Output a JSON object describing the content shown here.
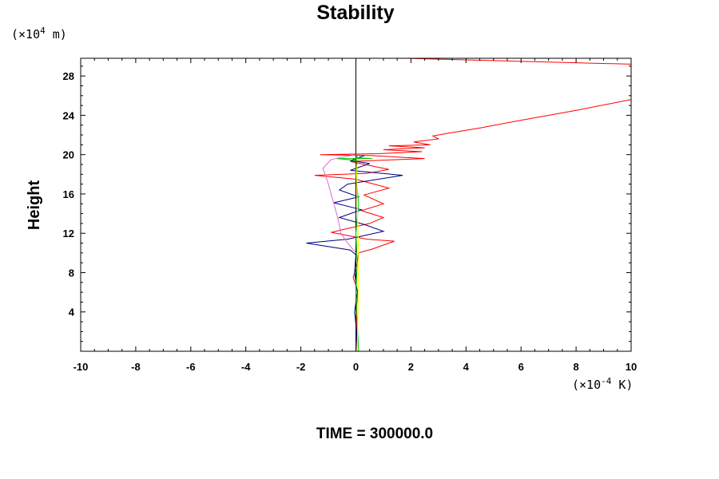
{
  "chart_data": {
    "type": "line",
    "title": "Stability",
    "ylabel": "Height",
    "xlabel": "",
    "x_unit": {
      "prefix": "(×10",
      "exp": "-4",
      "suffix": " K)"
    },
    "y_unit": {
      "prefix": "(×10",
      "exp": "4",
      "suffix": " m)"
    },
    "footer": "TIME = 300000.0",
    "xlim": [
      -10,
      10
    ],
    "ylim": [
      0,
      29.8
    ],
    "xticks": [
      -10,
      -8,
      -6,
      -4,
      -2,
      0,
      2,
      4,
      6,
      8,
      10
    ],
    "yticks": [
      4,
      8,
      12,
      16,
      20,
      24,
      28
    ],
    "grid": false,
    "zero_line": true,
    "series": [
      {
        "color": "#ff0000",
        "points": [
          [
            0.0,
            0.0
          ],
          [
            0.05,
            2.0
          ],
          [
            0.0,
            4.0
          ],
          [
            0.08,
            6.0
          ],
          [
            -0.1,
            7.5
          ],
          [
            0.05,
            9.0
          ],
          [
            0.1,
            10.0
          ],
          [
            0.6,
            10.4
          ],
          [
            1.4,
            11.2
          ],
          [
            0.4,
            11.4
          ],
          [
            -0.9,
            12.1
          ],
          [
            0.5,
            13.0
          ],
          [
            1.0,
            13.6
          ],
          [
            0.2,
            14.3
          ],
          [
            1.0,
            15.0
          ],
          [
            0.3,
            15.9
          ],
          [
            1.2,
            16.6
          ],
          [
            0.0,
            17.5
          ],
          [
            -1.5,
            17.9
          ],
          [
            0.4,
            18.1
          ],
          [
            1.2,
            18.5
          ],
          [
            -0.2,
            19.3
          ],
          [
            2.5,
            19.6
          ],
          [
            0.6,
            19.9
          ],
          [
            -1.3,
            20.0
          ],
          [
            0.8,
            20.1
          ],
          [
            2.4,
            20.3
          ],
          [
            1.0,
            20.5
          ],
          [
            2.5,
            20.7
          ],
          [
            1.2,
            20.9
          ],
          [
            2.7,
            21.0
          ],
          [
            2.1,
            21.3
          ],
          [
            3.0,
            21.6
          ],
          [
            2.8,
            21.9
          ],
          [
            3.4,
            22.2
          ],
          [
            4.5,
            22.7
          ],
          [
            6.0,
            23.5
          ],
          [
            8.0,
            24.5
          ],
          [
            10.0,
            25.6
          ]
        ]
      },
      {
        "color": "#ff0000",
        "points": [
          [
            1.8,
            29.8
          ],
          [
            10.0,
            29.2
          ]
        ]
      },
      {
        "color": "#000080",
        "points": [
          [
            0.0,
            0.0
          ],
          [
            0.03,
            2.0
          ],
          [
            -0.05,
            4.0
          ],
          [
            0.05,
            6.0
          ],
          [
            -0.05,
            8.0
          ],
          [
            0.0,
            9.8
          ],
          [
            -0.2,
            10.3
          ],
          [
            -1.8,
            11.0
          ],
          [
            -0.3,
            11.4
          ],
          [
            1.0,
            12.2
          ],
          [
            0.3,
            12.9
          ],
          [
            -0.6,
            13.6
          ],
          [
            0.2,
            14.4
          ],
          [
            -0.8,
            15.1
          ],
          [
            0.1,
            15.7
          ],
          [
            -0.6,
            16.4
          ],
          [
            -0.3,
            17.0
          ],
          [
            1.7,
            17.9
          ],
          [
            -0.2,
            18.4
          ],
          [
            0.5,
            19.1
          ],
          [
            -0.2,
            19.4
          ],
          [
            0.3,
            19.9
          ]
        ]
      },
      {
        "color": "#00cc00",
        "points": [
          [
            0.1,
            0.0
          ],
          [
            0.05,
            3.0
          ],
          [
            0.0,
            6.0
          ],
          [
            0.05,
            9.0
          ],
          [
            0.0,
            12.0
          ],
          [
            0.1,
            15.0
          ],
          [
            0.0,
            18.0
          ],
          [
            0.05,
            19.4
          ],
          [
            -0.7,
            19.6
          ],
          [
            0.6,
            19.6
          ],
          [
            0.0,
            19.7
          ],
          [
            0.1,
            20.0
          ]
        ]
      },
      {
        "color": "#ffff00",
        "points": [
          [
            0.05,
            0.0
          ],
          [
            0.08,
            5.0
          ],
          [
            0.1,
            10.0
          ],
          [
            0.05,
            15.0
          ],
          [
            0.02,
            19.0
          ]
        ]
      },
      {
        "color": "#dd66dd",
        "points": [
          [
            0.0,
            10.0
          ],
          [
            -0.3,
            11.0
          ],
          [
            -0.55,
            12.0
          ],
          [
            -0.65,
            13.5
          ],
          [
            -0.8,
            15.0
          ],
          [
            -1.0,
            17.0
          ],
          [
            -1.2,
            18.6
          ],
          [
            -0.9,
            19.5
          ],
          [
            -0.4,
            19.8
          ],
          [
            0.0,
            20.0
          ]
        ]
      }
    ]
  }
}
